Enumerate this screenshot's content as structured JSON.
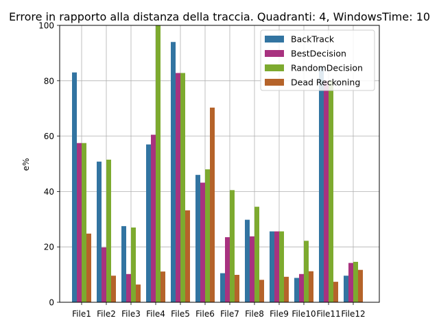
{
  "chart_data": {
    "type": "bar",
    "title": "Errore in rapporto alla distanza della traccia. Quadranti: 4, WindowsTime: 10",
    "xlabel": "",
    "ylabel": "e%",
    "ylim": [
      0,
      100
    ],
    "yticks": [
      0,
      20,
      40,
      60,
      80,
      100
    ],
    "grid": true,
    "legend_position": "top-right",
    "categories": [
      "File1",
      "File2",
      "File3",
      "File4",
      "File5",
      "File6",
      "File7",
      "File8",
      "File9",
      "File10",
      "File11",
      "File12"
    ],
    "series": [
      {
        "name": "BackTrack",
        "color": "#3274a1",
        "values": [
          83,
          50.8,
          27.5,
          57,
          94,
          46,
          10.5,
          29.8,
          25.6,
          8.8,
          85,
          9.6
        ]
      },
      {
        "name": "BestDecision",
        "color": "#a8327f",
        "values": [
          57.5,
          19.8,
          10.2,
          60.5,
          82.8,
          43.2,
          23.5,
          23.8,
          25.6,
          10.2,
          80,
          14.2
        ]
      },
      {
        "name": "RandomDecision",
        "color": "#7daa2f",
        "values": [
          57.5,
          51.5,
          27,
          100,
          82.8,
          48,
          40.5,
          34.5,
          25.6,
          22.2,
          80,
          14.6
        ]
      },
      {
        "name": "Dead Reckoning",
        "color": "#b5632a",
        "values": [
          24.8,
          9.6,
          6.4,
          11.1,
          33.2,
          70.3,
          9.9,
          8.1,
          9.2,
          11.2,
          7.4,
          11.7
        ]
      }
    ]
  }
}
